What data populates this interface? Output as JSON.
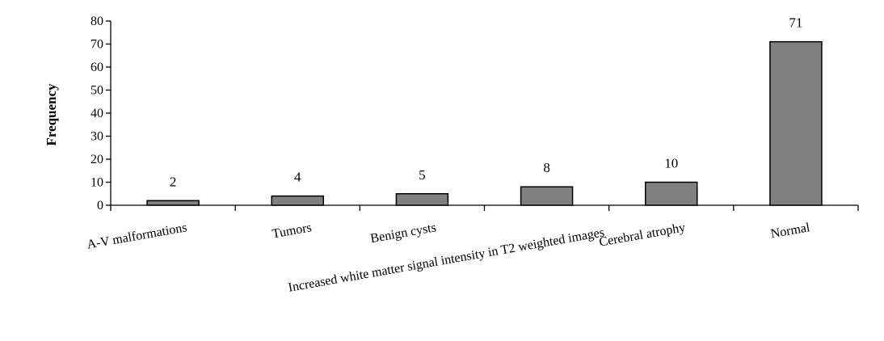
{
  "chart_data": {
    "type": "bar",
    "title": "",
    "xlabel": "",
    "ylabel": "Frequency",
    "ylim": [
      0,
      80
    ],
    "yticks": [
      "0",
      "10",
      "20",
      "30",
      "40",
      "50",
      "60",
      "70",
      "80"
    ],
    "grid": false,
    "legend": "none",
    "categories": [
      "A-V malformations",
      "Tumors",
      "Benign cysts",
      "Increased white matter signal intensity in T2 weighted images",
      "Cerebral atrophy",
      "Normal"
    ],
    "values": [
      2,
      4,
      5,
      8,
      10,
      71
    ],
    "data_labels": [
      "2",
      "4",
      "5",
      "8",
      "10",
      "71"
    ],
    "colors": {
      "bar_fill": "#808080",
      "bar_stroke": "#000000",
      "axis": "#000000",
      "text": "#000000"
    }
  }
}
